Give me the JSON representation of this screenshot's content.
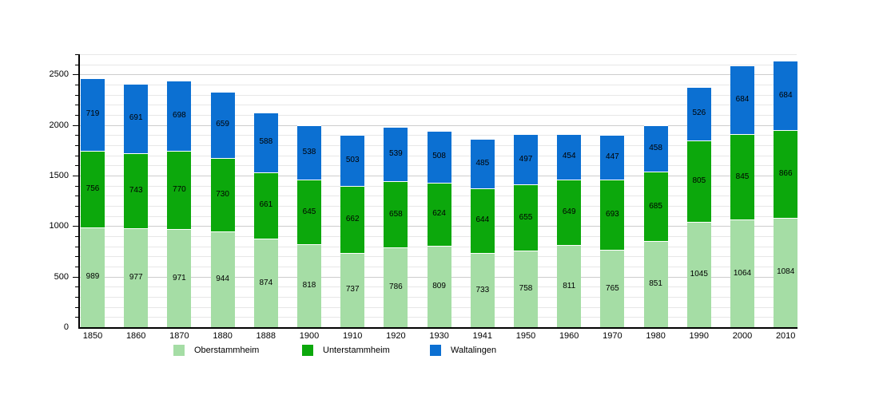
{
  "chart_data": {
    "type": "bar",
    "stacked": true,
    "title": "",
    "xlabel": "",
    "ylabel": "",
    "categories": [
      "1850",
      "1860",
      "1870",
      "1880",
      "1888",
      "1900",
      "1910",
      "1920",
      "1930",
      "1941",
      "1950",
      "1960",
      "1970",
      "1980",
      "1990",
      "2000",
      "2010"
    ],
    "series": [
      {
        "name": "Oberstammheim",
        "color": "#a5dda5",
        "values": [
          989,
          977,
          971,
          944,
          874,
          818,
          737,
          786,
          809,
          733,
          758,
          811,
          765,
          851,
          1045,
          1064,
          1084
        ]
      },
      {
        "name": "Unterstammheim",
        "color": "#0ca80c",
        "values": [
          756,
          743,
          770,
          730,
          661,
          645,
          662,
          658,
          624,
          644,
          655,
          649,
          693,
          685,
          805,
          845,
          866
        ]
      },
      {
        "name": "Waltalingen",
        "color": "#0c70d2",
        "values": [
          719,
          691,
          698,
          659,
          588,
          538,
          503,
          539,
          508,
          485,
          497,
          454,
          447,
          458,
          526,
          684,
          684
        ]
      }
    ],
    "ylim": [
      0,
      2700
    ],
    "yticks": [
      0,
      500,
      1000,
      1500,
      2000,
      2500
    ],
    "minor_tick_step": 100,
    "grid": "horizontal minor every 100, major every 500",
    "legend_position": "bottom",
    "value_labels": "centered inside each segment"
  },
  "colors": {
    "background": "#ffffff",
    "axis": "#000000",
    "grid_minor": "#e7e7e7",
    "grid_major": "#cdcdcd",
    "oberstammheim": "#a5dda5",
    "unterstammheim": "#0ca80c",
    "waltalingen": "#0c70d2"
  }
}
